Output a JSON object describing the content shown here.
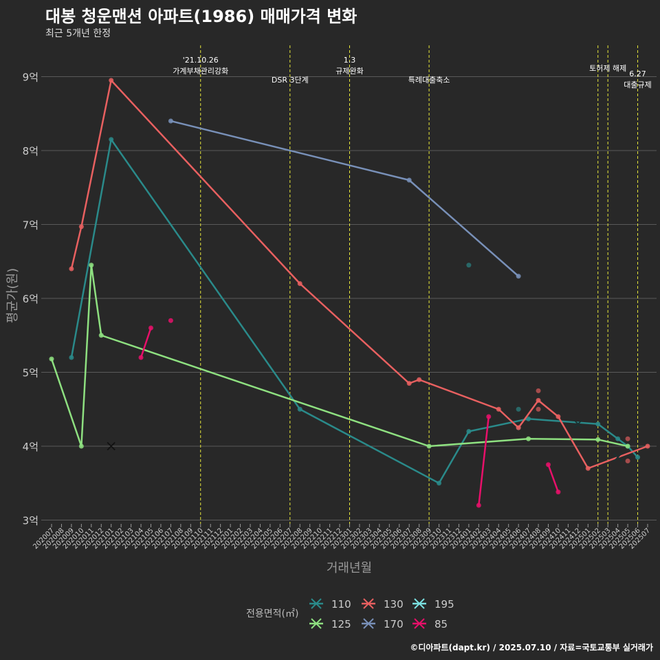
{
  "header": {
    "title": "대봉 청운맨션 아파트(1986) 매매가격 변화",
    "subtitle": "최근 5개년 한정"
  },
  "caption": "©디아파트(dapt.kr) / 2025.07.10 / 자료=국토교통부 실거래가",
  "colors": {
    "background": "#282828",
    "grid": "#5a5a5a",
    "event_line": "#e8e83a",
    "s110": "#2a8a8a",
    "s125": "#8ee080",
    "s130": "#e86060",
    "s170": "#7890b8",
    "s195": "#7ae0e0",
    "s85": "#e8106a"
  },
  "chart_data": {
    "type": "line",
    "title": "대봉 청운맨션 아파트(1986) 매매가격 변화",
    "subtitle": "최근 5개년 한정",
    "xlabel": "거래년월",
    "ylabel": "평균가(원)",
    "y_unit": "억",
    "ylim": [
      2.85,
      9.4
    ],
    "yticks": [
      3,
      4,
      5,
      6,
      7,
      8,
      9
    ],
    "ytick_labels": [
      "3억",
      "4억",
      "5억",
      "6억",
      "7억",
      "8억",
      "9억"
    ],
    "grid": true,
    "legend_title": "전용면적(㎡)",
    "legend_position": "bottom",
    "categories": [
      "202007",
      "202008",
      "202009",
      "202010",
      "202011",
      "202012",
      "202101",
      "202102",
      "202103",
      "202104",
      "202105",
      "202106",
      "202107",
      "202108",
      "202109",
      "202110",
      "202111",
      "202112",
      "202201",
      "202202",
      "202203",
      "202204",
      "202205",
      "202206",
      "202207",
      "202208",
      "202209",
      "202210",
      "202211",
      "202212",
      "202301",
      "202302",
      "202303",
      "202304",
      "202305",
      "202306",
      "202307",
      "202308",
      "202309",
      "202310",
      "202311",
      "202312",
      "202401",
      "202402",
      "202403",
      "202404",
      "202405",
      "202406",
      "202407",
      "202408",
      "202409",
      "202410",
      "202411",
      "202412",
      "202501",
      "202502",
      "202503",
      "202504",
      "202505",
      "202506",
      "202507"
    ],
    "events": [
      {
        "x": "202110",
        "label_lines": [
          "'21.10.26",
          "가계부채관리강화"
        ],
        "label_row": 0
      },
      {
        "x": "202207",
        "label_lines": [
          "DSR 3단계"
        ],
        "label_row": 2
      },
      {
        "x": "202301",
        "label_lines": [
          "1.3",
          "규제완화"
        ],
        "label_row": 0
      },
      {
        "x": "202309",
        "label_lines": [
          "특례대출축소"
        ],
        "label_row": 2
      },
      {
        "x": "202502",
        "label_lines": [],
        "label_row": 1
      },
      {
        "x": "202503",
        "label_lines": [
          "토허제 해제"
        ],
        "label_row": 1
      },
      {
        "x": "202506",
        "label_lines": [
          "6.27",
          "대출규제"
        ],
        "label_row": 3
      }
    ],
    "series": [
      {
        "name": "110",
        "color": "#2a8a8a",
        "points": [
          [
            "202009",
            5.2
          ],
          [
            "202101",
            8.15
          ],
          [
            "202208",
            4.5
          ],
          [
            "202310",
            3.5
          ],
          [
            "202401",
            4.2
          ],
          [
            "202407",
            4.37
          ],
          [
            "202502",
            4.3
          ],
          [
            "202504",
            4.1
          ],
          [
            "202505",
            4.0
          ],
          [
            "202506",
            3.85
          ]
        ],
        "extra_points": [
          [
            "202401",
            6.45
          ],
          [
            "202406",
            4.5
          ],
          [
            "202406",
            4.25
          ]
        ]
      },
      {
        "name": "125",
        "color": "#8ee080",
        "points": [
          [
            "202007",
            5.18
          ],
          [
            "202010",
            4.0
          ],
          [
            "202011",
            6.45
          ],
          [
            "202012",
            5.5
          ],
          [
            "202309",
            4.0
          ],
          [
            "202407",
            4.1
          ],
          [
            "202502",
            4.09
          ],
          [
            "202505",
            4.0
          ]
        ],
        "extra_points": []
      },
      {
        "name": "130",
        "color": "#e86060",
        "points": [
          [
            "202009",
            6.4
          ],
          [
            "202010",
            6.97
          ],
          [
            "202101",
            8.95
          ],
          [
            "202208",
            6.2
          ],
          [
            "202307",
            4.85
          ],
          [
            "202308",
            4.9
          ],
          [
            "202404",
            4.5
          ],
          [
            "202406",
            4.25
          ],
          [
            "202408",
            4.62
          ],
          [
            "202410",
            4.4
          ],
          [
            "202501",
            3.7
          ],
          [
            "202507",
            4.0
          ]
        ],
        "extra_points": [
          [
            "202408",
            4.75
          ],
          [
            "202408",
            4.5
          ],
          [
            "202505",
            4.1
          ],
          [
            "202505",
            3.8
          ]
        ]
      },
      {
        "name": "170",
        "color": "#7890b8",
        "points": [
          [
            "202107",
            8.4
          ],
          [
            "202307",
            7.6
          ],
          [
            "202406",
            6.3
          ]
        ],
        "extra_points": []
      },
      {
        "name": "195",
        "color": "#7ae0e0",
        "points": [],
        "extra_points": []
      },
      {
        "name": "85",
        "color": "#e8106a",
        "points": [
          [
            "202104",
            5.2
          ],
          [
            "202105",
            5.6
          ],
          [
            "202107",
            5.7
          ],
          [
            "202402",
            3.2
          ],
          [
            "202403",
            4.4
          ],
          [
            "202409",
            3.75
          ],
          [
            "202410",
            3.38
          ]
        ],
        "segments": [
          [
            0,
            1
          ],
          [
            3,
            4
          ],
          [
            5,
            6
          ]
        ],
        "extra_points": []
      }
    ],
    "x_markers": [
      {
        "series": "85",
        "x": "202101",
        "y": 4.0
      },
      {
        "series": "110",
        "x": "202412",
        "y": 4.3
      },
      {
        "series": "110",
        "x": "202504",
        "y": 3.85
      }
    ]
  }
}
